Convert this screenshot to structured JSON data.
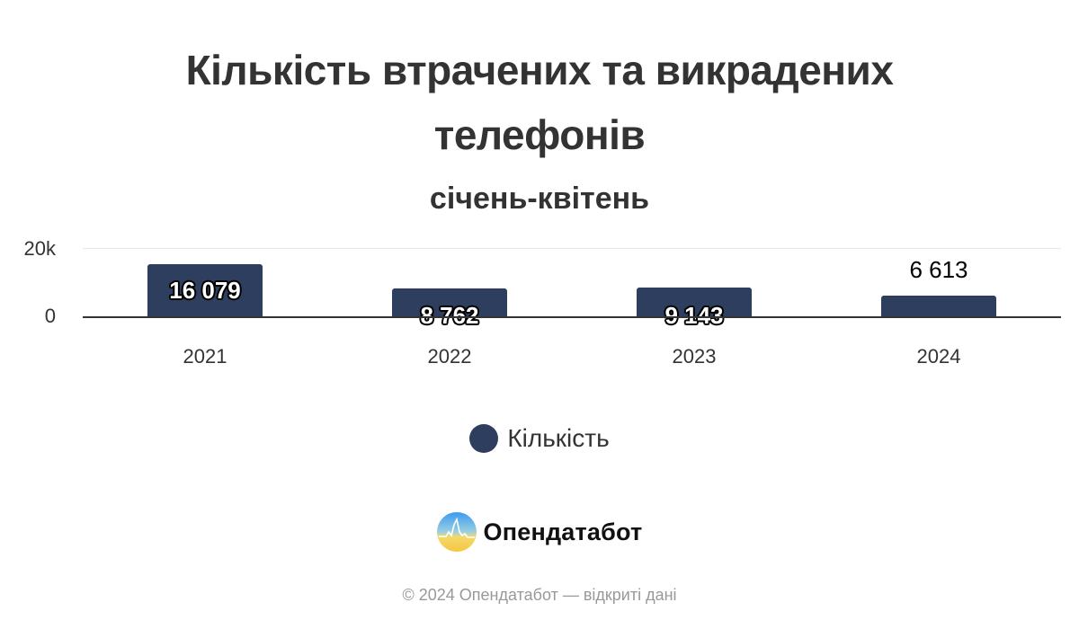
{
  "chart_data": {
    "type": "bar",
    "title": "Кількість втрачених та викрадених телефонів",
    "title_lines": [
      "Кількість втрачених та викрадених",
      "телефонів"
    ],
    "subtitle": "січень-квітень",
    "categories": [
      "2021",
      "2022",
      "2023",
      "2024"
    ],
    "series": [
      {
        "name": "Кількість",
        "values": [
          16079,
          8762,
          9143,
          6613
        ],
        "color": "#2d3e5e"
      }
    ],
    "data_labels": [
      "16 079",
      "8 762",
      "9 143",
      "6 613"
    ],
    "xlabel": "",
    "ylabel": "",
    "yticks": [
      "0",
      "20k"
    ],
    "ylim": [
      0,
      20000
    ],
    "grid": true,
    "legend_position": "bottom"
  },
  "legend": {
    "label": "Кількість",
    "color": "#2d3e5e"
  },
  "brand": {
    "name": "Опендатабот",
    "logo": "opendatabot-logo-icon"
  },
  "credits": "© 2024 Опендатабот — відкриті дані"
}
